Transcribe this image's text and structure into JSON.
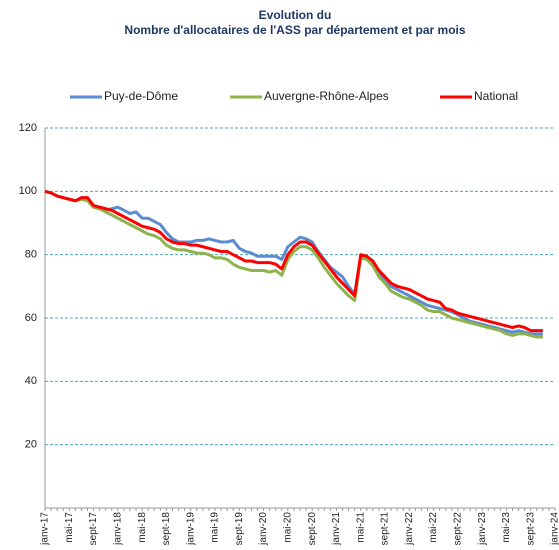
{
  "chart_data": {
    "type": "line",
    "title": "Evolution du",
    "subtitle": "Nombre d'allocataires de l'ASS par département et par mois",
    "categories": [
      "janv-17",
      null,
      null,
      null,
      "mai-17",
      null,
      null,
      null,
      "sept-17",
      null,
      null,
      null,
      "janv-18",
      null,
      null,
      null,
      "mai-18",
      null,
      null,
      null,
      "sept-18",
      null,
      null,
      null,
      "janv-19",
      null,
      null,
      null,
      "mai-19",
      null,
      null,
      null,
      "sept-19",
      null,
      null,
      null,
      "janv-20",
      null,
      null,
      null,
      "mai-20",
      null,
      null,
      null,
      "sept-20",
      null,
      null,
      null,
      "janv-21",
      null,
      null,
      null,
      "mai-21",
      null,
      null,
      null,
      "sept-21",
      null,
      null,
      null,
      "janv-22",
      null,
      null,
      null,
      "mai-22",
      null,
      null,
      null,
      "sept-22",
      null,
      null,
      null,
      "janv-23",
      null,
      null,
      null,
      "mai-23",
      null,
      null,
      null,
      "sept-23",
      null,
      null,
      null,
      "janv-24"
    ],
    "series": [
      {
        "name": "Puy-de-Dôme",
        "color": "#5b8bd0",
        "values": [
          100,
          99.5,
          98.5,
          98,
          97.5,
          97,
          98,
          97.5,
          95,
          94.5,
          94,
          94.5,
          95,
          94,
          93,
          93.5,
          91.5,
          91.5,
          90.5,
          89.5,
          87,
          85,
          84,
          84,
          84,
          84.5,
          84.5,
          85,
          84.5,
          84,
          84,
          84.5,
          82,
          81,
          80.5,
          79.5,
          79.5,
          79.5,
          79.5,
          78.5,
          82.5,
          84,
          85.5,
          85,
          84,
          81,
          78.5,
          76,
          74.5,
          73,
          70,
          67.5,
          79.5,
          79,
          77,
          74,
          72,
          70,
          69,
          68,
          67,
          66,
          65,
          64,
          63.5,
          63,
          62.5,
          62,
          61,
          60,
          59,
          58.5,
          58,
          57.5,
          57,
          56.5,
          56,
          55.5,
          56,
          55.5,
          55,
          55,
          55,
          null,
          null
        ]
      },
      {
        "name": "Auvergne-Rhône-Alpes",
        "color": "#8db34a",
        "values": [
          100,
          99.5,
          98.5,
          98,
          97.5,
          97,
          97.5,
          97,
          95,
          94.5,
          93.5,
          92.5,
          91.5,
          90.5,
          89.5,
          88.5,
          87.5,
          86.5,
          86,
          85,
          83,
          82,
          81.5,
          81.5,
          81,
          80.5,
          80.5,
          80,
          79,
          79,
          78.5,
          77,
          76,
          75.5,
          75,
          75,
          75,
          74.5,
          75,
          73.5,
          78.5,
          81,
          82.5,
          82.5,
          81.5,
          79,
          76,
          73.5,
          71,
          69,
          67,
          65.5,
          79,
          78.5,
          76.5,
          73,
          71,
          68.5,
          67.5,
          66.5,
          66,
          65,
          64,
          62.5,
          62,
          62,
          61,
          60,
          59.5,
          59,
          58.5,
          58,
          57.5,
          57,
          56.5,
          56,
          55,
          54.5,
          55,
          55,
          54.5,
          54,
          54,
          null,
          null
        ]
      },
      {
        "name": "National",
        "color": "#ff0000",
        "values": [
          100,
          99.5,
          98.5,
          98,
          97.5,
          97,
          98,
          98,
          95.5,
          95,
          94.5,
          94,
          93,
          92,
          91,
          90,
          89,
          88.5,
          88,
          87,
          85,
          84,
          83.5,
          83.5,
          83,
          83,
          82.5,
          82,
          81.5,
          81,
          81,
          80,
          79,
          78,
          78,
          77.5,
          77.5,
          77.5,
          77,
          75.5,
          80,
          82.5,
          84,
          84,
          83,
          80.5,
          78,
          75.5,
          73,
          71,
          69,
          67,
          80,
          79.5,
          78,
          75,
          73,
          71,
          70,
          69.5,
          69,
          68,
          67,
          66,
          65.5,
          65,
          63,
          62.5,
          61.5,
          61,
          60.5,
          60,
          59.5,
          59,
          58.5,
          58,
          57.5,
          57,
          57.5,
          57,
          56,
          56,
          56,
          null,
          null
        ]
      }
    ],
    "ylim": [
      0,
      120
    ],
    "yticks": [
      20,
      40,
      60,
      80,
      100,
      120
    ],
    "grid": true,
    "legend": "top"
  }
}
